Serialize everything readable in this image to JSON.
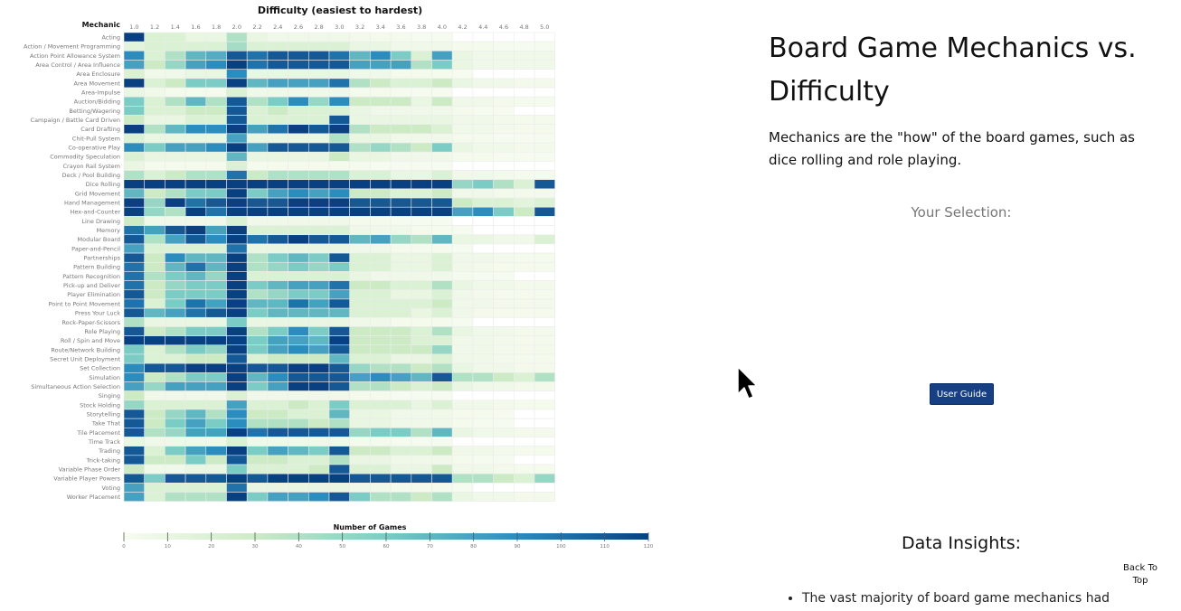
{
  "page": {
    "title": "Board Game Mechanics vs. Difficulty",
    "intro": "Mechanics are the \"how\" of the board games, such as dice rolling and role playing.",
    "selection_heading": "Your Selection:",
    "user_guide_label": "User Guide",
    "insights_heading": "Data Insights:",
    "insights": [
      "The vast majority of board game mechanics had"
    ],
    "back_to_top": "Back To Top"
  },
  "colors": {
    "scale": [
      "#f7fcf0",
      "#ccebc5",
      "#7bccc4",
      "#2b8cbe",
      "#084081"
    ],
    "empty_cell": "#ffffff",
    "button": "#173f83"
  },
  "icons": {
    "cursor": "cursor-arrow-icon"
  },
  "chart_data": {
    "type": "heatmap",
    "title": "Difficulty (easiest to hardest)",
    "ylabel": "Mechanic",
    "x": [
      "1.0",
      "1.2",
      "1.4",
      "1.6",
      "1.8",
      "2.0",
      "2.2",
      "2.4",
      "2.6",
      "2.8",
      "3.0",
      "3.2",
      "3.4",
      "3.6",
      "3.8",
      "4.0",
      "4.2",
      "4.4",
      "4.6",
      "4.8",
      "5.0"
    ],
    "y": [
      "Acting",
      "Action / Movement Programming",
      "Action Point Allowance System",
      "Area Control / Area Influence",
      "Area Enclosure",
      "Area Movement",
      "Area-Impulse",
      "Auction/Bidding",
      "Betting/Wagering",
      "Campaign / Battle Card Driven",
      "Card Drafting",
      "Chit-Pull System",
      "Co-operative Play",
      "Commodity Speculation",
      "Crayon Rail System",
      "Deck / Pool Building",
      "Dice Rolling",
      "Grid Movement",
      "Hand Management",
      "Hex-and-Counter",
      "Line Drawing",
      "Memory",
      "Modular Board",
      "Paper-and-Pencil",
      "Partnerships",
      "Pattern Building",
      "Pattern Recognition",
      "Pick-up and Deliver",
      "Player Elimination",
      "Point to Point Movement",
      "Press Your Luck",
      "Rock-Paper-Scissors",
      "Role Playing",
      "Roll / Spin and Move",
      "Route/Network Building",
      "Secret Unit Deployment",
      "Set Collection",
      "Simulation",
      "Simultaneous Action Selection",
      "Singing",
      "Stock Holding",
      "Storytelling",
      "Take That",
      "Tile Placement",
      "Time Track",
      "Trading",
      "Trick-taking",
      "Variable Phase Order",
      "Variable Player Powers",
      "Voting",
      "Worker Placement"
    ],
    "values": [
      [
        120,
        20,
        20,
        10,
        10,
        40,
        10,
        5,
        5,
        5,
        5,
        3,
        2,
        2,
        1,
        1,
        0,
        0,
        0,
        0,
        0
      ],
      [
        15,
        20,
        20,
        20,
        20,
        45,
        20,
        20,
        20,
        20,
        20,
        10,
        10,
        5,
        5,
        5,
        2,
        2,
        1,
        1,
        1
      ],
      [
        90,
        20,
        40,
        70,
        75,
        110,
        100,
        110,
        110,
        110,
        100,
        70,
        90,
        60,
        20,
        80,
        10,
        5,
        5,
        5,
        5
      ],
      [
        80,
        30,
        50,
        80,
        90,
        120,
        100,
        110,
        110,
        110,
        110,
        80,
        80,
        80,
        40,
        60,
        10,
        5,
        5,
        5,
        5
      ],
      [
        20,
        5,
        5,
        10,
        10,
        90,
        10,
        10,
        10,
        10,
        10,
        5,
        5,
        2,
        2,
        2,
        1,
        0,
        0,
        0,
        0
      ],
      [
        120,
        20,
        30,
        60,
        60,
        120,
        70,
        80,
        80,
        80,
        100,
        40,
        30,
        20,
        20,
        30,
        10,
        5,
        5,
        3,
        3
      ],
      [
        10,
        5,
        2,
        2,
        2,
        20,
        5,
        5,
        5,
        5,
        5,
        2,
        2,
        1,
        1,
        1,
        0,
        0,
        0,
        0,
        0
      ],
      [
        60,
        20,
        40,
        70,
        40,
        110,
        40,
        60,
        90,
        50,
        90,
        30,
        30,
        30,
        10,
        30,
        5,
        5,
        3,
        2,
        2
      ],
      [
        60,
        20,
        20,
        30,
        30,
        110,
        20,
        30,
        20,
        20,
        20,
        10,
        5,
        5,
        5,
        5,
        2,
        1,
        1,
        0,
        0
      ],
      [
        30,
        10,
        10,
        20,
        20,
        110,
        20,
        20,
        20,
        20,
        110,
        10,
        10,
        10,
        10,
        10,
        5,
        5,
        3,
        2,
        2
      ],
      [
        120,
        40,
        70,
        90,
        90,
        120,
        80,
        100,
        120,
        110,
        120,
        40,
        30,
        30,
        30,
        20,
        5,
        5,
        3,
        2,
        2
      ],
      [
        20,
        10,
        10,
        10,
        10,
        80,
        10,
        10,
        10,
        10,
        40,
        10,
        10,
        5,
        5,
        5,
        2,
        2,
        1,
        1,
        1
      ],
      [
        90,
        60,
        80,
        80,
        90,
        120,
        80,
        110,
        110,
        110,
        110,
        40,
        50,
        40,
        30,
        60,
        10,
        5,
        5,
        3,
        3
      ],
      [
        20,
        10,
        10,
        10,
        10,
        70,
        10,
        10,
        10,
        10,
        30,
        10,
        10,
        5,
        5,
        5,
        2,
        2,
        1,
        1,
        1
      ],
      [
        10,
        2,
        2,
        2,
        2,
        20,
        2,
        2,
        2,
        2,
        2,
        2,
        1,
        1,
        1,
        1,
        0,
        0,
        0,
        0,
        0
      ],
      [
        40,
        20,
        30,
        40,
        40,
        100,
        30,
        40,
        40,
        40,
        40,
        20,
        20,
        10,
        10,
        20,
        5,
        5,
        3,
        2,
        2
      ],
      [
        120,
        120,
        120,
        120,
        120,
        120,
        120,
        120,
        120,
        120,
        120,
        120,
        120,
        120,
        120,
        120,
        50,
        60,
        40,
        20,
        110
      ],
      [
        70,
        30,
        40,
        60,
        60,
        120,
        60,
        80,
        90,
        80,
        90,
        30,
        30,
        20,
        20,
        30,
        5,
        5,
        3,
        3,
        3
      ],
      [
        120,
        50,
        120,
        100,
        110,
        120,
        110,
        110,
        120,
        120,
        120,
        110,
        110,
        110,
        110,
        110,
        30,
        20,
        20,
        15,
        20
      ],
      [
        120,
        50,
        40,
        120,
        100,
        120,
        120,
        120,
        120,
        120,
        120,
        120,
        120,
        120,
        120,
        120,
        80,
        90,
        60,
        30,
        110
      ],
      [
        30,
        5,
        5,
        5,
        5,
        20,
        5,
        5,
        5,
        5,
        5,
        2,
        2,
        1,
        1,
        1,
        0,
        0,
        0,
        0,
        0
      ],
      [
        100,
        80,
        110,
        120,
        80,
        120,
        20,
        20,
        20,
        20,
        20,
        5,
        5,
        5,
        2,
        2,
        1,
        0,
        0,
        0,
        0
      ],
      [
        110,
        40,
        80,
        110,
        90,
        120,
        100,
        110,
        120,
        110,
        110,
        70,
        80,
        50,
        40,
        70,
        10,
        10,
        5,
        5,
        20
      ],
      [
        80,
        20,
        20,
        20,
        20,
        100,
        10,
        10,
        10,
        10,
        10,
        5,
        5,
        2,
        2,
        2,
        1,
        0,
        0,
        0,
        0
      ],
      [
        110,
        30,
        90,
        70,
        70,
        120,
        40,
        60,
        70,
        60,
        110,
        20,
        20,
        10,
        10,
        20,
        5,
        5,
        3,
        2,
        2
      ],
      [
        100,
        30,
        70,
        100,
        70,
        120,
        40,
        50,
        60,
        50,
        60,
        20,
        20,
        10,
        10,
        20,
        5,
        3,
        2,
        2,
        2
      ],
      [
        100,
        40,
        60,
        70,
        50,
        120,
        20,
        20,
        20,
        20,
        20,
        10,
        5,
        5,
        5,
        5,
        2,
        1,
        1,
        0,
        0
      ],
      [
        100,
        30,
        50,
        60,
        60,
        120,
        60,
        70,
        80,
        80,
        100,
        30,
        30,
        20,
        20,
        40,
        10,
        5,
        5,
        3,
        3
      ],
      [
        110,
        30,
        60,
        60,
        60,
        120,
        40,
        50,
        60,
        60,
        80,
        20,
        20,
        10,
        10,
        20,
        5,
        3,
        2,
        2,
        2
      ],
      [
        100,
        20,
        60,
        100,
        80,
        120,
        70,
        70,
        100,
        80,
        110,
        20,
        20,
        20,
        20,
        30,
        5,
        5,
        3,
        3,
        3
      ],
      [
        110,
        70,
        80,
        100,
        110,
        120,
        60,
        70,
        70,
        70,
        70,
        20,
        20,
        20,
        10,
        20,
        5,
        3,
        2,
        2,
        2
      ],
      [
        40,
        10,
        10,
        10,
        10,
        60,
        10,
        10,
        10,
        10,
        10,
        5,
        5,
        2,
        2,
        2,
        1,
        0,
        0,
        0,
        0
      ],
      [
        110,
        30,
        40,
        60,
        60,
        120,
        40,
        60,
        90,
        60,
        110,
        30,
        30,
        30,
        20,
        40,
        10,
        5,
        5,
        3,
        3
      ],
      [
        120,
        120,
        120,
        120,
        120,
        120,
        60,
        80,
        80,
        70,
        120,
        30,
        30,
        30,
        20,
        20,
        5,
        5,
        3,
        2,
        2
      ],
      [
        60,
        20,
        40,
        60,
        50,
        120,
        60,
        80,
        90,
        80,
        110,
        30,
        30,
        30,
        30,
        50,
        5,
        5,
        3,
        3,
        3
      ],
      [
        60,
        20,
        20,
        30,
        30,
        110,
        20,
        30,
        30,
        30,
        70,
        20,
        20,
        10,
        10,
        20,
        5,
        5,
        3,
        2,
        2
      ],
      [
        90,
        110,
        110,
        120,
        120,
        120,
        110,
        110,
        120,
        120,
        110,
        50,
        40,
        40,
        30,
        40,
        10,
        5,
        5,
        3,
        3
      ],
      [
        90,
        30,
        40,
        60,
        60,
        120,
        70,
        90,
        110,
        110,
        110,
        80,
        90,
        80,
        70,
        110,
        40,
        40,
        30,
        20,
        40
      ],
      [
        80,
        50,
        80,
        80,
        80,
        120,
        60,
        80,
        120,
        120,
        110,
        40,
        40,
        30,
        20,
        30,
        10,
        5,
        5,
        3,
        3
      ],
      [
        30,
        5,
        5,
        5,
        5,
        20,
        5,
        5,
        5,
        5,
        5,
        2,
        2,
        1,
        1,
        1,
        0,
        0,
        0,
        0,
        0
      ],
      [
        50,
        20,
        20,
        20,
        20,
        80,
        20,
        20,
        30,
        20,
        60,
        20,
        20,
        20,
        10,
        20,
        5,
        5,
        3,
        2,
        2
      ],
      [
        110,
        30,
        50,
        70,
        40,
        90,
        30,
        30,
        20,
        20,
        70,
        10,
        10,
        5,
        5,
        5,
        2,
        2,
        1,
        0,
        0
      ],
      [
        110,
        30,
        60,
        80,
        60,
        90,
        40,
        40,
        40,
        30,
        40,
        10,
        10,
        5,
        5,
        5,
        2,
        1,
        1,
        0,
        0
      ],
      [
        110,
        40,
        50,
        80,
        80,
        120,
        100,
        110,
        110,
        110,
        110,
        50,
        60,
        60,
        40,
        70,
        10,
        5,
        5,
        3,
        3
      ],
      [
        10,
        5,
        5,
        5,
        5,
        20,
        5,
        5,
        5,
        5,
        5,
        2,
        2,
        1,
        1,
        1,
        0,
        0,
        0,
        0,
        0
      ],
      [
        110,
        20,
        60,
        80,
        90,
        120,
        60,
        80,
        70,
        60,
        110,
        30,
        30,
        20,
        20,
        30,
        5,
        5,
        3,
        2,
        2
      ],
      [
        110,
        30,
        30,
        60,
        30,
        110,
        30,
        30,
        20,
        20,
        40,
        10,
        10,
        5,
        5,
        5,
        2,
        1,
        1,
        0,
        0
      ],
      [
        30,
        5,
        5,
        10,
        10,
        60,
        20,
        20,
        20,
        30,
        110,
        20,
        20,
        10,
        10,
        30,
        5,
        5,
        3,
        2,
        2
      ],
      [
        110,
        60,
        110,
        110,
        110,
        120,
        110,
        120,
        120,
        120,
        120,
        110,
        110,
        110,
        110,
        110,
        40,
        40,
        30,
        20,
        50
      ],
      [
        80,
        20,
        20,
        20,
        20,
        100,
        10,
        10,
        10,
        10,
        10,
        5,
        5,
        2,
        2,
        2,
        1,
        0,
        0,
        0,
        0
      ],
      [
        80,
        20,
        40,
        40,
        40,
        120,
        60,
        80,
        80,
        90,
        110,
        60,
        40,
        40,
        30,
        40,
        10,
        5,
        5,
        3,
        3
      ]
    ],
    "legend": {
      "title": "Number of Games",
      "ticks": [
        0,
        10,
        20,
        30,
        40,
        50,
        60,
        70,
        80,
        90,
        100,
        110,
        120
      ],
      "range": [
        0,
        120
      ],
      "placement": "bottom"
    }
  }
}
